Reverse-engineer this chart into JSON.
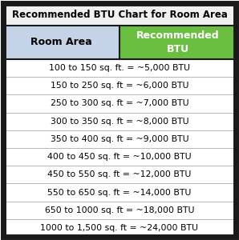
{
  "title": "Recommended BTU Chart for Room Area",
  "col1_header": "Room Area",
  "col2_header": "Recommended\nBTU",
  "rows": [
    "100 to 150 sq. ft. = ~5,000 BTU",
    "150 to 250 sq. ft = ~6,000 BTU",
    "250 to 300 sq. ft = ~7,000 BTU",
    "300 to 350 sq. ft = ~8,000 BTU",
    "350 to 400 sq. ft = ~9,000 BTU",
    "400 to 450 sq. ft = ~10,000 BTU",
    "450 to 550 sq. ft = ~12,000 BTU",
    "550 to 650 sq. ft = ~14,000 BTU",
    "650 to 1000 sq. ft = ~18,000 BTU",
    "1000 to 1,500 sq. ft = ~24,000 BTU"
  ],
  "title_bg": "#f0f0f0",
  "title_fg": "#000000",
  "col1_header_bg": "#c5d3e8",
  "col1_header_fg": "#000000",
  "col2_header_bg": "#6abf40",
  "col2_header_fg": "#ffffff",
  "row_bg_odd": "#ffffff",
  "row_bg_even": "#ffffff",
  "row_fg": "#000000",
  "border_color": "#1a1a1a",
  "grid_color": "#aaaaaa",
  "title_fontsize": 8.5,
  "header_fontsize": 9.0,
  "row_fontsize": 7.8,
  "fig_width": 2.98,
  "fig_height": 3.0,
  "dpi": 100
}
